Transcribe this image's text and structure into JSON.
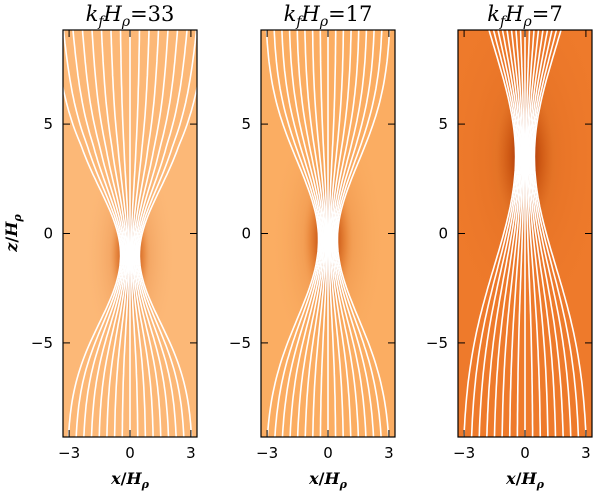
{
  "chart_data": {
    "type": "heatmap",
    "description_note": "",
    "panels": [
      {
        "title_main": "k",
        "title_sub": "f",
        "title_mid": "H",
        "title_sub2": "ρ",
        "title_val": "=33",
        "xlim": [
          -3.3,
          3.3
        ],
        "ylim": [
          -9.3,
          9.3
        ],
        "xticks": [
          -3,
          0,
          3
        ],
        "yticks": [
          -5,
          0,
          5
        ],
        "bg_color": "#fcb877",
        "peak_y": -1.0,
        "spread": 0.35
      },
      {
        "title_main": "k",
        "title_sub": "f",
        "title_mid": "H",
        "title_sub2": "ρ",
        "title_val": "=17",
        "xlim": [
          -3.3,
          3.3
        ],
        "ylim": [
          -9.3,
          9.3
        ],
        "xticks": [
          -3,
          0,
          3
        ],
        "yticks": [
          -5,
          0,
          5
        ],
        "bg_color": "#fbad62",
        "peak_y": -0.3,
        "spread": 0.55
      },
      {
        "title_main": "k",
        "title_sub": "f",
        "title_mid": "H",
        "title_sub2": "ρ",
        "title_val": "=7",
        "xlim": [
          -3.3,
          3.3
        ],
        "ylim": [
          -9.3,
          9.3
        ],
        "xticks": [
          -3,
          0,
          3
        ],
        "yticks": [
          -5,
          0,
          5
        ],
        "bg_color": "#ee7a2b",
        "peak_y": 3.5,
        "spread": 1.1
      }
    ],
    "xlabel_main": "x",
    "xlabel_sep": "/",
    "xlabel_H": "H",
    "xlabel_sub": "ρ",
    "ylabel_main": "z",
    "ylabel_sep": "/",
    "ylabel_H": "H",
    "ylabel_sub": "ρ",
    "line_color": "#ffffff"
  }
}
